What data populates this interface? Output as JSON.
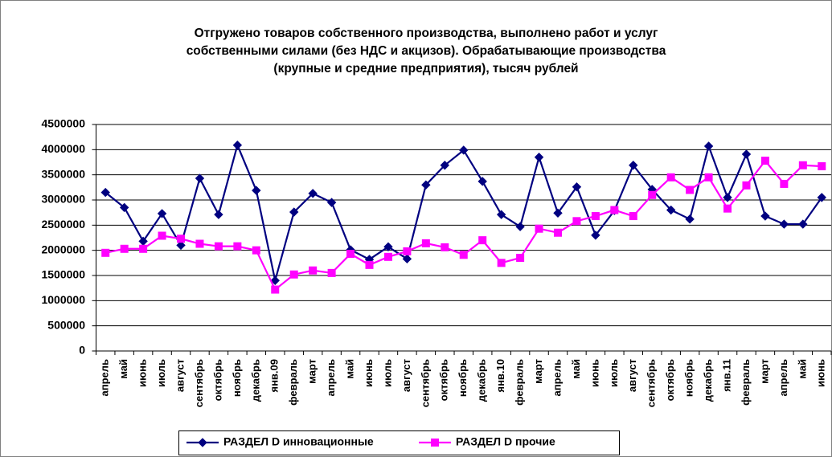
{
  "chart_data": {
    "type": "line",
    "title": [
      "Отгружено товаров собственного производства, выполнено работ и услуг",
      "собственными силами (без НДС и акцизов). Обрабатывающие производства",
      "(крупные и средние предприятия), тысяч рублей"
    ],
    "categories": [
      "апрель",
      "май",
      "июнь",
      "июль",
      "август",
      "сентябрь",
      "октябрь",
      "ноябрь",
      "декабрь",
      "янв.09",
      "февраль",
      "март",
      "апрель",
      "май",
      "июнь",
      "июль",
      "август",
      "сентябрь",
      "октябрь",
      "ноябрь",
      "декабрь",
      "янв.10",
      "февраль",
      "март",
      "апрель",
      "май",
      "июнь",
      "июль",
      "август",
      "сентябрь",
      "октябрь",
      "ноябрь",
      "декабрь",
      "янв.11",
      "февраль",
      "март",
      "апрель",
      "май",
      "июнь"
    ],
    "series": [
      {
        "name": "РАЗДЕЛ D инновационные",
        "color": "#000080",
        "marker": "diamond",
        "values": [
          3150000,
          2850000,
          2180000,
          2730000,
          2100000,
          3430000,
          2710000,
          4090000,
          3190000,
          1400000,
          2760000,
          3130000,
          2950000,
          2010000,
          1820000,
          2070000,
          1830000,
          3300000,
          3690000,
          3990000,
          3370000,
          2710000,
          2470000,
          3850000,
          2740000,
          3260000,
          2300000,
          2790000,
          3690000,
          3210000,
          2800000,
          2620000,
          4070000,
          3050000,
          3910000,
          2680000,
          2520000,
          2520000,
          3050000
        ]
      },
      {
        "name": "РАЗДЕЛ D прочие",
        "color": "#ff00ff",
        "marker": "square",
        "values": [
          1950000,
          2030000,
          2030000,
          2290000,
          2230000,
          2130000,
          2080000,
          2080000,
          2000000,
          1220000,
          1520000,
          1600000,
          1550000,
          1930000,
          1710000,
          1870000,
          1980000,
          2140000,
          2060000,
          1910000,
          2200000,
          1750000,
          1850000,
          2430000,
          2350000,
          2580000,
          2680000,
          2800000,
          2680000,
          3100000,
          3450000,
          3200000,
          3450000,
          2830000,
          3290000,
          3780000,
          3320000,
          3690000,
          3670000
        ]
      }
    ],
    "ylim": [
      0,
      4500000
    ],
    "yticks": [
      0,
      500000,
      1000000,
      1500000,
      2000000,
      2500000,
      3000000,
      3500000,
      4000000,
      4500000
    ],
    "grid": true,
    "legend": "bottom"
  }
}
